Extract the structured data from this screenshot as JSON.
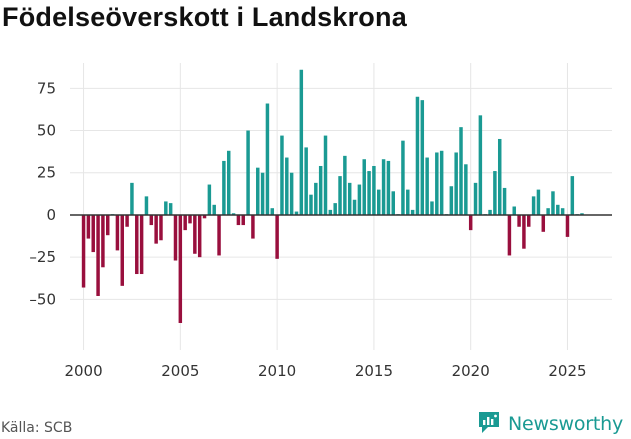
{
  "title": "Födelseöverskott i Landskrona",
  "source": "Källa: SCB",
  "brand": {
    "name": "Newsworthy",
    "icon": "newsworthy-logo-icon"
  },
  "colors": {
    "positive": "#1a9a93",
    "negative": "#990f3d",
    "grid": "#e6e6e6",
    "zero": "#333333"
  },
  "chart_data": {
    "type": "bar",
    "title": "Födelseöverskott i Landskrona",
    "xlabel": "",
    "ylabel": "",
    "frequency": "quarterly",
    "x_start": 2000.0,
    "x_step": 0.25,
    "xlim": [
      1999.3,
      2027.3
    ],
    "ylim": [
      -80,
      90
    ],
    "x_ticks": [
      2000,
      2005,
      2010,
      2015,
      2020,
      2025
    ],
    "y_ticks": [
      -50,
      -25,
      0,
      25,
      50,
      75
    ],
    "y_tick_labels": [
      "–50",
      "–25",
      "0",
      "25",
      "50",
      "75"
    ],
    "values": [
      -43,
      -14,
      -22,
      -48,
      -31,
      -12,
      0,
      -21,
      -42,
      -7,
      19,
      -35,
      -35,
      11,
      -6,
      -17,
      -15,
      8,
      7,
      -27,
      -64,
      -9,
      -5,
      -23,
      -25,
      -2,
      18,
      6,
      -24,
      32,
      38,
      1,
      -6,
      -6,
      50,
      -14,
      28,
      25,
      66,
      4,
      -26,
      47,
      34,
      25,
      2,
      86,
      40,
      12,
      19,
      29,
      47,
      3,
      7,
      23,
      35,
      19,
      9,
      18,
      33,
      26,
      29,
      15,
      33,
      32,
      14,
      0,
      44,
      15,
      3,
      70,
      68,
      34,
      8,
      37,
      38,
      0,
      17,
      37,
      52,
      30,
      -9,
      19,
      59,
      0,
      3,
      26,
      45,
      16,
      -24,
      5,
      -7,
      -20,
      -7,
      11,
      15,
      -10,
      4,
      14,
      6,
      4,
      -13,
      23,
      0,
      1
    ]
  }
}
